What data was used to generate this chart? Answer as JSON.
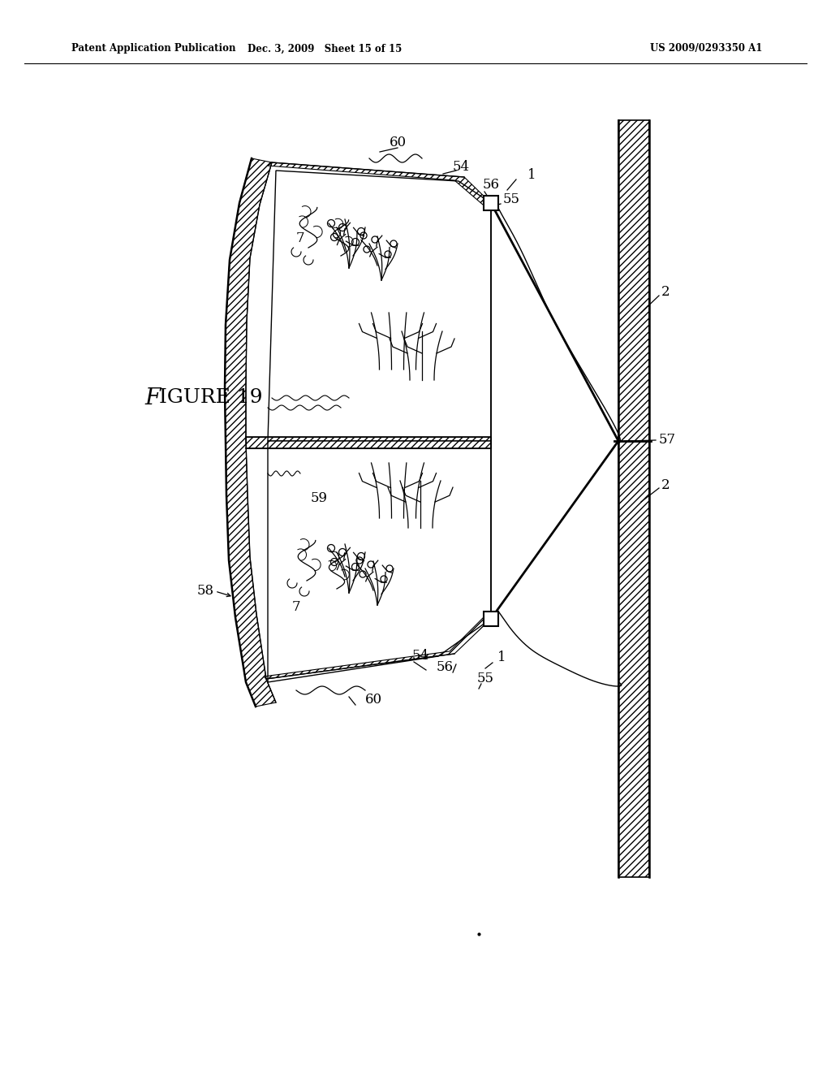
{
  "bg_color": "#ffffff",
  "lc": "#000000",
  "header_left": "Patent Application Publication",
  "header_mid": "Dec. 3, 2009   Sheet 15 of 15",
  "header_right": "US 2009/0293350 A1"
}
